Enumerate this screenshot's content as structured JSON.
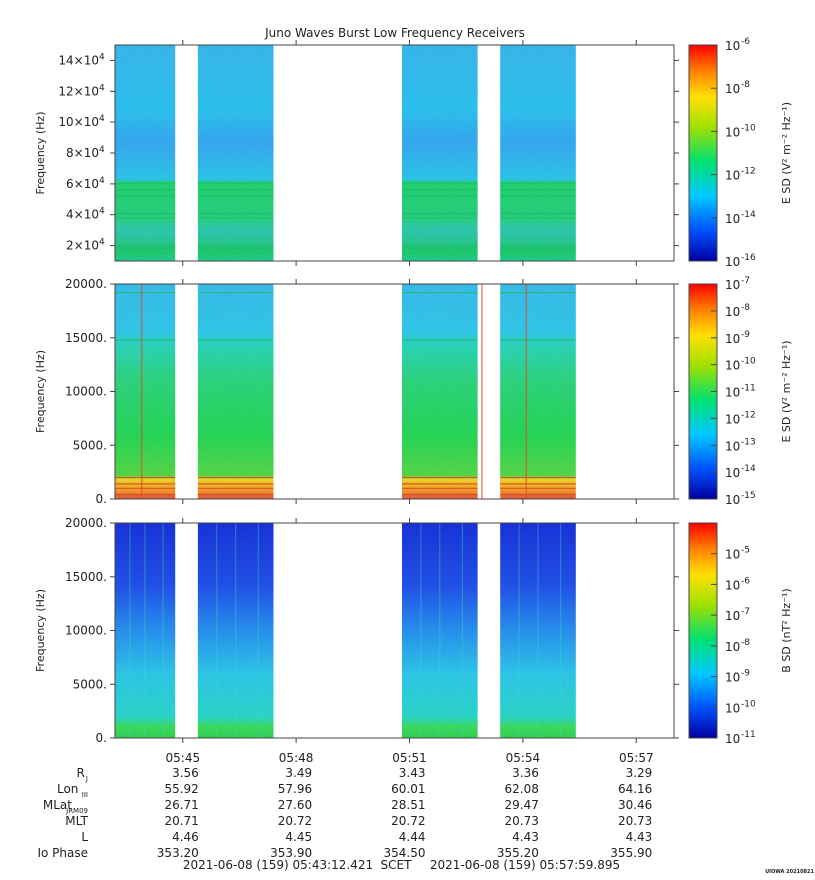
{
  "title": "Juno Waves Burst Low Frequency Receivers",
  "colors": {
    "background_noise_blue": "#3aa0e8",
    "signal_green": "#22cc55",
    "intense_red": "#e02020",
    "colormap": [
      "#0000a0",
      "#0050ff",
      "#00c8ff",
      "#00e070",
      "#a0e000",
      "#ffe000",
      "#ff8000",
      "#ff0000"
    ]
  },
  "chart_data": [
    {
      "type": "heatmap",
      "panel": "top",
      "ylabel": "Frequency (Hz)",
      "y_ticks": [
        "2×10",
        "4×10",
        "6×10",
        "8×10",
        "10×10",
        "12×10",
        "14×10"
      ],
      "y_tick_values": [
        20000,
        40000,
        60000,
        80000,
        100000,
        120000,
        140000
      ],
      "y_tick_exp": "4",
      "ylim": [
        10000,
        150000
      ],
      "colorbar_label": "E SD (V² m⁻² Hz⁻¹)",
      "colorbar_ticks": [
        "10",
        "10",
        "10",
        "10",
        "10",
        "10"
      ],
      "colorbar_exps": [
        "-6",
        "-8",
        "-10",
        "-12",
        "-14",
        "-16"
      ],
      "colorbar_log_range": [
        -16,
        -6
      ],
      "segments": [
        [
          "05:43:12",
          "05:44:48"
        ],
        [
          "05:45:24",
          "05:47:24"
        ],
        [
          "05:50:48",
          "05:52:48"
        ],
        [
          "05:53:24",
          "05:55:24"
        ]
      ],
      "bands": [
        {
          "from": 10000,
          "to": 65000,
          "level": "green"
        },
        {
          "from": 65000,
          "to": 150000,
          "level": "cyan-blue"
        }
      ]
    },
    {
      "type": "heatmap",
      "panel": "middle",
      "ylabel": "Frequency (Hz)",
      "y_ticks": [
        "0.",
        "5000.",
        "10000.",
        "15000.",
        "20000."
      ],
      "y_tick_values": [
        0,
        5000,
        10000,
        15000,
        20000
      ],
      "ylim": [
        0,
        20000
      ],
      "colorbar_label": "E SD (V² m⁻² Hz⁻¹)",
      "colorbar_ticks": [
        "10",
        "10",
        "10",
        "10",
        "10",
        "10",
        "10",
        "10",
        "10"
      ],
      "colorbar_exps": [
        "-7",
        "-8",
        "-9",
        "-10",
        "-11",
        "-12",
        "-13",
        "-14",
        "-15"
      ],
      "colorbar_log_range": [
        -15,
        -7
      ],
      "segments": [
        [
          "05:43:12",
          "05:44:48"
        ],
        [
          "05:45:24",
          "05:47:24"
        ],
        [
          "05:50:48",
          "05:52:48"
        ],
        [
          "05:53:24",
          "05:55:24"
        ]
      ],
      "bands": [
        {
          "from": 0,
          "to": 2300,
          "level": "orange-red"
        },
        {
          "from": 2300,
          "to": 15500,
          "level": "green"
        },
        {
          "from": 15500,
          "to": 20000,
          "level": "cyan"
        }
      ]
    },
    {
      "type": "heatmap",
      "panel": "bottom",
      "ylabel": "Frequency (Hz)",
      "y_ticks": [
        "0.",
        "5000.",
        "10000.",
        "15000.",
        "20000."
      ],
      "y_tick_values": [
        0,
        5000,
        10000,
        15000,
        20000
      ],
      "ylim": [
        0,
        20000
      ],
      "colorbar_label": "B SD (nT² Hz⁻¹)",
      "colorbar_ticks": [
        "10",
        "10",
        "10",
        "10",
        "10",
        "10",
        "10"
      ],
      "colorbar_exps": [
        "-5",
        "-6",
        "-7",
        "-8",
        "-9",
        "-10",
        "-11"
      ],
      "colorbar_log_range": [
        -11,
        -4
      ],
      "segments": [
        [
          "05:43:12",
          "05:44:48"
        ],
        [
          "05:45:24",
          "05:47:24"
        ],
        [
          "05:50:48",
          "05:52:48"
        ],
        [
          "05:53:24",
          "05:55:24"
        ]
      ],
      "bands": [
        {
          "from": 0,
          "to": 1000,
          "level": "green"
        },
        {
          "from": 1000,
          "to": 9000,
          "level": "cyan-green"
        },
        {
          "from": 9000,
          "to": 20000,
          "level": "blue"
        }
      ]
    }
  ],
  "x_axis": {
    "ticks": [
      "05:45",
      "05:48",
      "05:51",
      "05:54",
      "05:57"
    ],
    "range": [
      "05:43:12",
      "05:57:59"
    ]
  },
  "ephemeris": {
    "rows": [
      {
        "label": "R",
        "sub": "J",
        "values": [
          "3.56",
          "3.49",
          "3.43",
          "3.36",
          "3.29"
        ]
      },
      {
        "label": "Lon",
        "sub": "III",
        "values": [
          "55.92",
          "57.96",
          "60.01",
          "62.08",
          "64.16"
        ]
      },
      {
        "label": "MLat",
        "sub": "JRM09",
        "values": [
          "26.71",
          "27.60",
          "28.51",
          "29.47",
          "30.46"
        ]
      },
      {
        "label": "MLT",
        "sub": "",
        "values": [
          "20.71",
          "20.72",
          "20.72",
          "20.73",
          "20.73"
        ]
      },
      {
        "label": "L",
        "sub": "",
        "values": [
          "4.46",
          "4.45",
          "4.44",
          "4.43",
          "4.43"
        ]
      },
      {
        "label": "Io Phase",
        "sub": "",
        "values": [
          "353.20",
          "353.90",
          "354.50",
          "355.20",
          "355.90"
        ]
      }
    ]
  },
  "footer": {
    "start": "2021-06-08 (159) 05:43:12.421",
    "scet": "SCET",
    "end": "2021-06-08 (159) 05:57:59.895",
    "stamp": "UIOWA 20210821"
  }
}
